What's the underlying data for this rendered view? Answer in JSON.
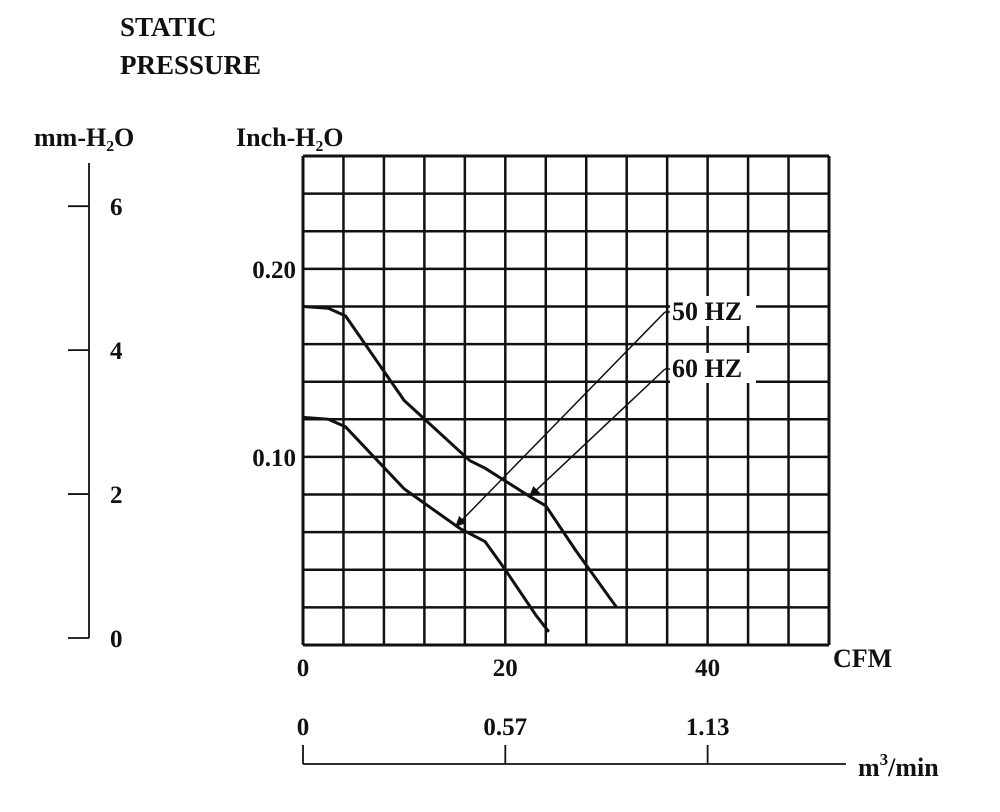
{
  "header": {
    "title_line1": "STATIC",
    "title_line2": "PRESSURE"
  },
  "axes": {
    "left_unit": "mm-H₂O",
    "inner_unit": "Inch-H₂O",
    "x_unit": "CFM",
    "bottom_unit_base": "m",
    "bottom_unit_sup": "3",
    "bottom_unit_tail": "/min"
  },
  "chart_data": {
    "type": "line",
    "title": "STATIC PRESSURE",
    "xlabel": "CFM",
    "ylabel": "Inch-H₂O",
    "xlim": [
      0,
      52
    ],
    "ylim": [
      0,
      0.26
    ],
    "grid": true,
    "x_ticks": [
      {
        "value": 0,
        "label": "0"
      },
      {
        "value": 20,
        "label": "20"
      },
      {
        "value": 40,
        "label": "40"
      }
    ],
    "y_ticks": [
      {
        "value": 0.1,
        "label": "0.10"
      },
      {
        "value": 0.2,
        "label": "0.20"
      }
    ],
    "secondary_y": {
      "label": "mm-H₂O",
      "ticks": [
        {
          "value": 0,
          "label": "0"
        },
        {
          "value": 2,
          "label": "2"
        },
        {
          "value": 4,
          "label": "4"
        },
        {
          "value": 6,
          "label": "6"
        }
      ]
    },
    "secondary_x": {
      "label": "m³/min",
      "ticks": [
        {
          "cfm": 0,
          "label": "0"
        },
        {
          "cfm": 20,
          "label": "0.57"
        },
        {
          "cfm": 40,
          "label": "1.13"
        }
      ]
    },
    "series": [
      {
        "name": "60 HZ",
        "points": [
          [
            0,
            0.18
          ],
          [
            2.5,
            0.179
          ],
          [
            4.2,
            0.175
          ],
          [
            10,
            0.13
          ],
          [
            16.5,
            0.098
          ],
          [
            18,
            0.094
          ],
          [
            22.4,
            0.079
          ],
          [
            24,
            0.074
          ],
          [
            27,
            0.05
          ],
          [
            31,
            0.02
          ]
        ]
      },
      {
        "name": "50 HZ",
        "points": [
          [
            0,
            0.121
          ],
          [
            2.5,
            0.12
          ],
          [
            4.2,
            0.116
          ],
          [
            10,
            0.083
          ],
          [
            15.5,
            0.062
          ],
          [
            18,
            0.055
          ],
          [
            20,
            0.04
          ],
          [
            23,
            0.016
          ],
          [
            24.3,
            0.007
          ]
        ]
      }
    ],
    "annotations": [
      {
        "text": "50 HZ",
        "series": "50 HZ",
        "arrow_to": [
          15.1,
          0.063
        ]
      },
      {
        "text": "60 HZ",
        "series": "60 HZ",
        "arrow_to": [
          22.4,
          0.079
        ]
      }
    ]
  }
}
